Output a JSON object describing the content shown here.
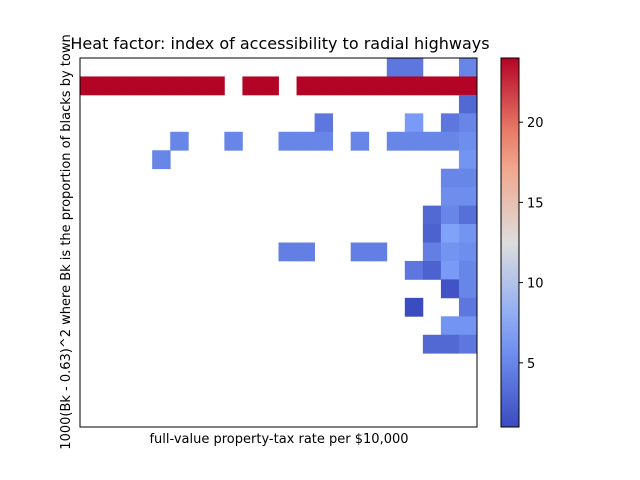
{
  "chart_data": {
    "type": "heatmap",
    "title": "Heat factor: index of accessibility to radial highways",
    "xlabel": "full-value property-tax rate per $10,000",
    "ylabel": "1000(Bk - 0.63)^2 where Bk is the proportion of blacks by town",
    "colormap": "coolwarm",
    "colorbar": {
      "min": 1,
      "max": 24,
      "ticks": [
        5,
        10,
        15,
        20
      ]
    },
    "grid": false,
    "x_bins": 22,
    "y_bins": 20,
    "cells": [
      {
        "col": 17,
        "row": 0,
        "value": 4
      },
      {
        "col": 18,
        "row": 0,
        "value": 4
      },
      {
        "col": 21,
        "row": 0,
        "value": 5
      },
      {
        "col": 0,
        "row": 1,
        "value": 24
      },
      {
        "col": 1,
        "row": 1,
        "value": 24
      },
      {
        "col": 2,
        "row": 1,
        "value": 24
      },
      {
        "col": 3,
        "row": 1,
        "value": 24
      },
      {
        "col": 4,
        "row": 1,
        "value": 24
      },
      {
        "col": 5,
        "row": 1,
        "value": 24
      },
      {
        "col": 6,
        "row": 1,
        "value": 24
      },
      {
        "col": 7,
        "row": 1,
        "value": 24
      },
      {
        "col": 9,
        "row": 1,
        "value": 24
      },
      {
        "col": 10,
        "row": 1,
        "value": 24
      },
      {
        "col": 12,
        "row": 1,
        "value": 24
      },
      {
        "col": 13,
        "row": 1,
        "value": 24
      },
      {
        "col": 14,
        "row": 1,
        "value": 24
      },
      {
        "col": 15,
        "row": 1,
        "value": 24
      },
      {
        "col": 16,
        "row": 1,
        "value": 24
      },
      {
        "col": 17,
        "row": 1,
        "value": 24
      },
      {
        "col": 18,
        "row": 1,
        "value": 24
      },
      {
        "col": 19,
        "row": 1,
        "value": 24
      },
      {
        "col": 20,
        "row": 1,
        "value": 24
      },
      {
        "col": 21,
        "row": 1,
        "value": 24
      },
      {
        "col": 21,
        "row": 2,
        "value": 3
      },
      {
        "col": 13,
        "row": 3,
        "value": 4
      },
      {
        "col": 18,
        "row": 3,
        "value": 6.5
      },
      {
        "col": 20,
        "row": 3,
        "value": 4
      },
      {
        "col": 21,
        "row": 3,
        "value": 5
      },
      {
        "col": 5,
        "row": 4,
        "value": 5
      },
      {
        "col": 8,
        "row": 4,
        "value": 5
      },
      {
        "col": 11,
        "row": 4,
        "value": 5
      },
      {
        "col": 12,
        "row": 4,
        "value": 5
      },
      {
        "col": 13,
        "row": 4,
        "value": 5
      },
      {
        "col": 15,
        "row": 4,
        "value": 5
      },
      {
        "col": 17,
        "row": 4,
        "value": 5
      },
      {
        "col": 18,
        "row": 4,
        "value": 5
      },
      {
        "col": 19,
        "row": 4,
        "value": 5
      },
      {
        "col": 20,
        "row": 4,
        "value": 5
      },
      {
        "col": 21,
        "row": 4,
        "value": 5.5
      },
      {
        "col": 4,
        "row": 5,
        "value": 5
      },
      {
        "col": 21,
        "row": 5,
        "value": 6
      },
      {
        "col": 20,
        "row": 6,
        "value": 5
      },
      {
        "col": 21,
        "row": 6,
        "value": 5
      },
      {
        "col": 20,
        "row": 7,
        "value": 5.5
      },
      {
        "col": 21,
        "row": 7,
        "value": 5.5
      },
      {
        "col": 19,
        "row": 8,
        "value": 3
      },
      {
        "col": 20,
        "row": 8,
        "value": 5
      },
      {
        "col": 21,
        "row": 8,
        "value": 3.5
      },
      {
        "col": 19,
        "row": 9,
        "value": 2.5
      },
      {
        "col": 20,
        "row": 9,
        "value": 7
      },
      {
        "col": 21,
        "row": 9,
        "value": 6
      },
      {
        "col": 11,
        "row": 10,
        "value": 4.5
      },
      {
        "col": 12,
        "row": 10,
        "value": 4.5
      },
      {
        "col": 15,
        "row": 10,
        "value": 4.5
      },
      {
        "col": 16,
        "row": 10,
        "value": 4.5
      },
      {
        "col": 19,
        "row": 10,
        "value": 4.5
      },
      {
        "col": 20,
        "row": 10,
        "value": 6
      },
      {
        "col": 21,
        "row": 10,
        "value": 5.5
      },
      {
        "col": 18,
        "row": 11,
        "value": 4
      },
      {
        "col": 19,
        "row": 11,
        "value": 2.5
      },
      {
        "col": 20,
        "row": 11,
        "value": 6.5
      },
      {
        "col": 21,
        "row": 11,
        "value": 5
      },
      {
        "col": 20,
        "row": 12,
        "value": 1.5
      },
      {
        "col": 21,
        "row": 12,
        "value": 5
      },
      {
        "col": 18,
        "row": 13,
        "value": 1
      },
      {
        "col": 21,
        "row": 13,
        "value": 4
      },
      {
        "col": 20,
        "row": 14,
        "value": 6
      },
      {
        "col": 21,
        "row": 14,
        "value": 6
      },
      {
        "col": 19,
        "row": 15,
        "value": 3
      },
      {
        "col": 20,
        "row": 15,
        "value": 3
      },
      {
        "col": 21,
        "row": 15,
        "value": 4
      }
    ]
  }
}
